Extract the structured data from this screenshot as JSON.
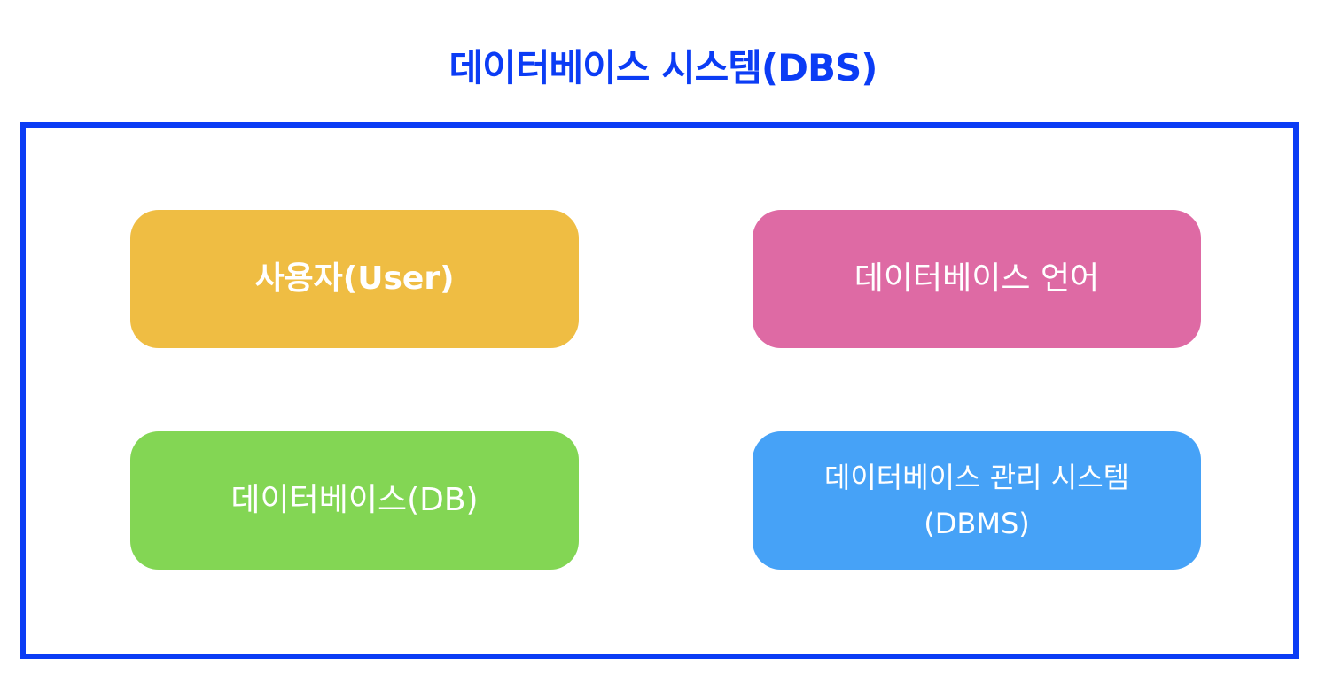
{
  "title": {
    "text": "데이터베이스 시스템(DBS)",
    "color": "#0b3cf5"
  },
  "frame": {
    "border_color": "#0b3cf5"
  },
  "boxes": [
    {
      "label": "사용자(User)",
      "color": "#efbd43"
    },
    {
      "label": "데이터베이스 언어",
      "color": "#de6aa4"
    },
    {
      "label": "데이터베이스(DB)",
      "color": "#83d654"
    },
    {
      "label_line1": "데이터베이스 관리 시스템",
      "label_line2": "(DBMS)",
      "color": "#46a2f7"
    }
  ]
}
